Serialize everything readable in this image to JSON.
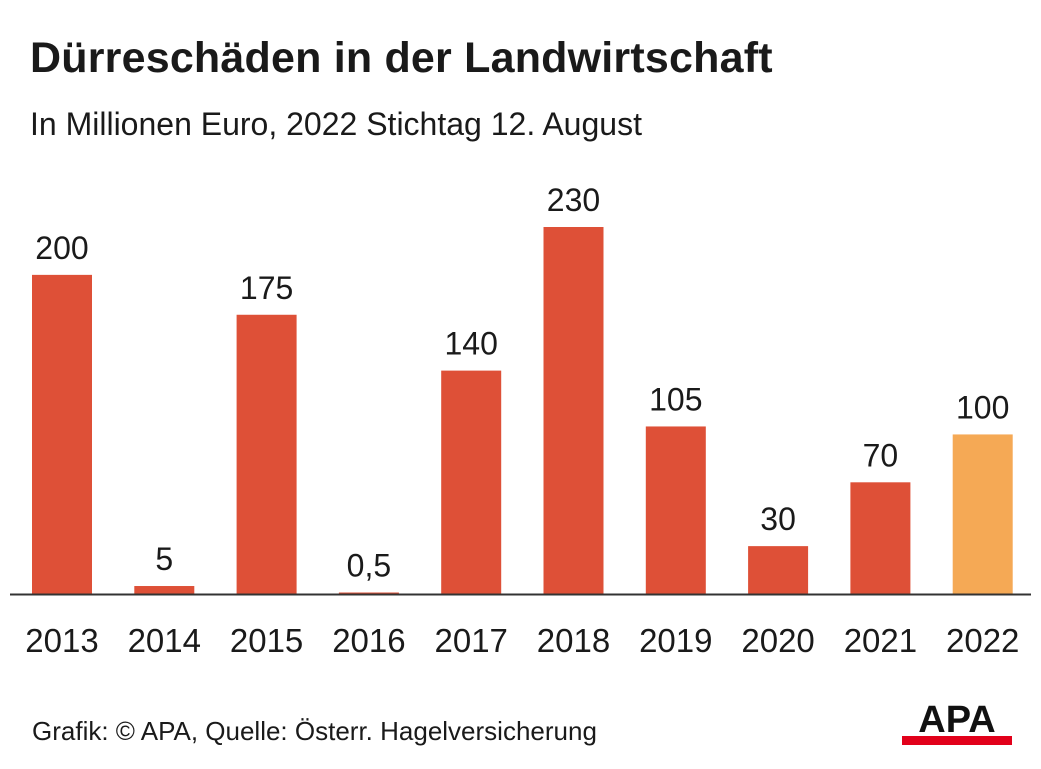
{
  "header": {
    "title": "Dürreschäden in der Landwirtschaft",
    "subtitle": "In Millionen Euro, 2022 Stichtag 12. August"
  },
  "chart_data": {
    "type": "bar",
    "title": "Dürreschäden in der Landwirtschaft",
    "subtitle": "In Millionen Euro, 2022 Stichtag 12. August",
    "categories": [
      "2013",
      "2014",
      "2015",
      "2016",
      "2017",
      "2018",
      "2019",
      "2020",
      "2021",
      "2022"
    ],
    "values": [
      200,
      5,
      175,
      0.5,
      140,
      230,
      105,
      30,
      70,
      100
    ],
    "value_labels": [
      "200",
      "5",
      "175",
      "0,5",
      "140",
      "230",
      "105",
      "30",
      "70",
      "100"
    ],
    "xlabel": "",
    "ylabel": "",
    "ylim": [
      0,
      230
    ],
    "grid": false,
    "legend": "none",
    "colors": {
      "bar": "#de5037",
      "highlight_bar": "#f5a955",
      "highlight_category": "2022",
      "axis": "#333333"
    }
  },
  "footer": {
    "credit": "Grafik: © APA, Quelle: Österr. Hagelversicherung"
  },
  "logo": {
    "text": "APA",
    "colors": {
      "text": "#111111",
      "stripe": "#e2001a"
    }
  }
}
